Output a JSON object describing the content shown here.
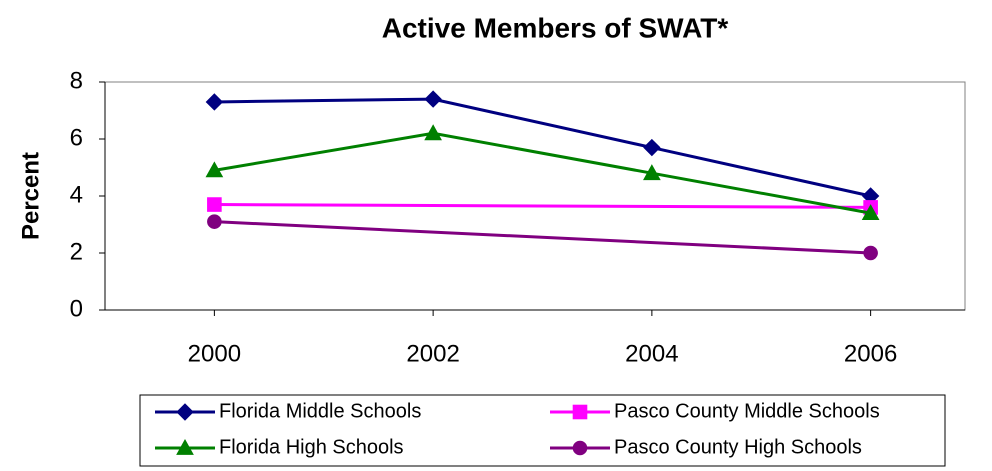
{
  "chart_data": {
    "type": "line",
    "title": "Active Members of SWAT*",
    "y_label": "Percent",
    "xlim": [
      1999,
      2007
    ],
    "xticks": [
      2000,
      2002,
      2004,
      2006
    ],
    "ylim": [
      0,
      8
    ],
    "yticks": [
      0,
      2,
      4,
      6,
      8
    ],
    "series": [
      {
        "name": "Florida Middle Schools",
        "color": "#000080",
        "marker": "diamond",
        "x": [
          2000,
          2002,
          2004,
          2006
        ],
        "values": [
          7.3,
          7.4,
          5.7,
          4.0
        ]
      },
      {
        "name": "Pasco County Middle Schools",
        "color": "#ff00ff",
        "marker": "square",
        "x": [
          2000,
          2006
        ],
        "values": [
          3.7,
          3.6
        ]
      },
      {
        "name": "Florida High Schools",
        "color": "#008000",
        "marker": "triangle",
        "x": [
          2000,
          2002,
          2004,
          2006
        ],
        "values": [
          4.9,
          6.2,
          4.8,
          3.4
        ]
      },
      {
        "name": "Pasco County High Schools",
        "color": "#800080",
        "marker": "circle",
        "x": [
          2000,
          2006
        ],
        "values": [
          3.1,
          2.0
        ]
      }
    ]
  }
}
